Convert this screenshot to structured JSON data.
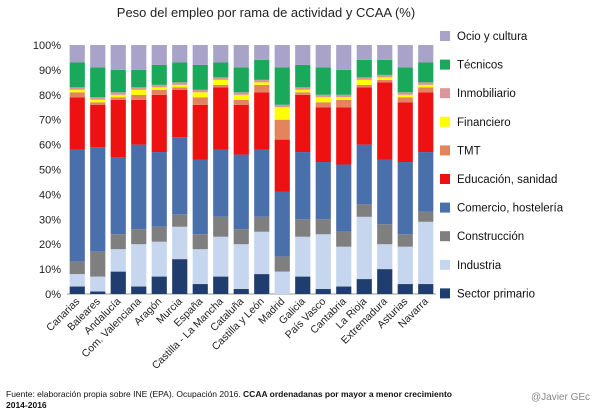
{
  "chart_data": {
    "type": "stacked-bar-100",
    "title": "Peso del empleo por rama de actividad  y CCAA (%)",
    "ylim": [
      0,
      100
    ],
    "yticks": [
      "0%",
      "10%",
      "20%",
      "30%",
      "40%",
      "50%",
      "60%",
      "70%",
      "80%",
      "90%",
      "100%"
    ],
    "categories": [
      "Canarias",
      "Baleares",
      "Andalucía",
      "Com. Valenciana",
      "Aragón",
      "Murcia",
      "España",
      "Castilla - La Mancha",
      "Cataluña",
      "Castilla y León",
      "Madrid",
      "Galicia",
      "País Vasco",
      "Cantabria",
      "La Rioja",
      "Extremadura",
      "Asturias",
      "Navarra"
    ],
    "series": [
      {
        "name": "Sector primario",
        "color": "#1f3e6e",
        "values": [
          3,
          1,
          9,
          3,
          7,
          14,
          4,
          7,
          2,
          8,
          0,
          7,
          2,
          3,
          6,
          10,
          4,
          4
        ]
      },
      {
        "name": "Industria",
        "color": "#c5d6ee",
        "values": [
          5,
          6,
          9,
          17,
          14,
          13,
          14,
          16,
          18,
          17,
          9,
          16,
          22,
          16,
          25,
          10,
          15,
          25
        ]
      },
      {
        "name": "Construcción",
        "color": "#7f7f7f",
        "values": [
          5,
          10,
          6,
          6,
          6,
          5,
          6,
          8,
          6,
          6,
          6,
          7,
          6,
          6,
          5,
          8,
          5,
          4
        ]
      },
      {
        "name": "Comercio, hostelería",
        "color": "#4a70ac",
        "values": [
          45,
          42,
          31,
          34,
          30,
          31,
          30,
          27,
          30,
          27,
          26,
          27,
          23,
          27,
          24,
          26,
          29,
          24
        ]
      },
      {
        "name": "Educación, sanidad",
        "color": "#ee1111",
        "values": [
          21,
          17,
          23,
          18,
          23,
          19,
          22,
          25,
          20,
          23,
          21,
          23,
          22,
          23,
          23,
          31,
          24,
          24
        ]
      },
      {
        "name": "TMT",
        "color": "#e4845c",
        "values": [
          2,
          1,
          1,
          2,
          2,
          1,
          3,
          1,
          2,
          3,
          8,
          1,
          2,
          3,
          1,
          1,
          2,
          2
        ]
      },
      {
        "name": "Financiero",
        "color": "#ffff00",
        "values": [
          1,
          1,
          1,
          2,
          1,
          1,
          2,
          2,
          2,
          1,
          5,
          1,
          2,
          1,
          2,
          1,
          1,
          1
        ]
      },
      {
        "name": "Inmobiliario",
        "color": "#d9969b",
        "values": [
          1,
          1,
          1,
          1,
          1,
          1,
          1,
          1,
          1,
          1,
          1,
          1,
          1,
          1,
          1,
          1,
          1,
          1
        ]
      },
      {
        "name": "Técnicos",
        "color": "#1aa85a",
        "values": [
          10,
          12,
          9,
          7,
          8,
          8,
          10,
          6,
          10,
          8,
          15,
          9,
          11,
          10,
          7,
          6,
          10,
          8
        ]
      },
      {
        "name": "Ocio y cultura",
        "color": "#a9a2c9",
        "values": [
          7,
          9,
          10,
          10,
          8,
          7,
          8,
          7,
          9,
          6,
          9,
          8,
          9,
          10,
          6,
          6,
          9,
          7
        ]
      }
    ],
    "legend_position": "right"
  },
  "footer": {
    "text_normal": "Fuente: elaboración propia sobre INE (EPA). Ocupación 2016. ",
    "text_bold": "CCAA ordenadanas por mayor a menor crecimiento  2014-2016"
  },
  "author_handle": "@Javier GEc"
}
